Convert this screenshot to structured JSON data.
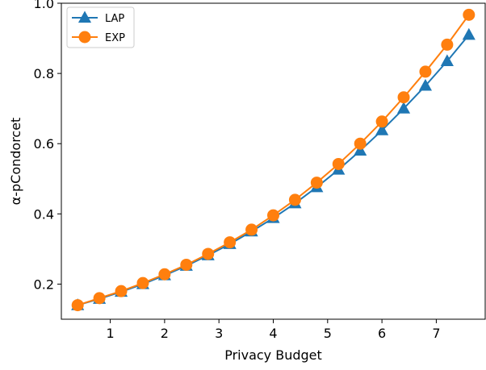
{
  "chart_data": {
    "type": "line",
    "title": "",
    "xlabel": "Privacy Budget",
    "ylabel": "α-pCondorcet",
    "xlim": [
      0.1,
      7.9
    ],
    "ylim": [
      0.1,
      1.0
    ],
    "xticks": [
      1,
      2,
      3,
      4,
      5,
      6,
      7
    ],
    "yticks": [
      0.2,
      0.4,
      0.6,
      0.8,
      1.0
    ],
    "xtick_labels": [
      "1",
      "2",
      "3",
      "4",
      "5",
      "6",
      "7"
    ],
    "ytick_labels": [
      "0.2",
      "0.4",
      "0.6",
      "0.8",
      "1.0"
    ],
    "grid": false,
    "legend_position": "top-left",
    "series": [
      {
        "name": "LAP",
        "color": "#1f77b4",
        "marker": "triangle-up",
        "x": [
          0.4,
          0.8,
          1.2,
          1.6,
          2.0,
          2.4,
          2.8,
          3.2,
          3.6,
          4.0,
          4.4,
          4.8,
          5.2,
          5.6,
          6.0,
          6.4,
          6.8,
          7.2,
          7.6
        ],
        "values": [
          0.14,
          0.158,
          0.178,
          0.2,
          0.225,
          0.252,
          0.282,
          0.314,
          0.35,
          0.388,
          0.43,
          0.476,
          0.526,
          0.58,
          0.638,
          0.7,
          0.765,
          0.835,
          0.91
        ]
      },
      {
        "name": "EXP",
        "color": "#ff7f0e",
        "marker": "circle",
        "x": [
          0.4,
          0.8,
          1.2,
          1.6,
          2.0,
          2.4,
          2.8,
          3.2,
          3.6,
          4.0,
          4.4,
          4.8,
          5.2,
          5.6,
          6.0,
          6.4,
          6.8,
          7.2,
          7.6
        ],
        "values": [
          0.14,
          0.16,
          0.18,
          0.203,
          0.228,
          0.255,
          0.286,
          0.319,
          0.355,
          0.396,
          0.44,
          0.489,
          0.542,
          0.6,
          0.663,
          0.732,
          0.805,
          0.882,
          0.967
        ]
      }
    ]
  }
}
